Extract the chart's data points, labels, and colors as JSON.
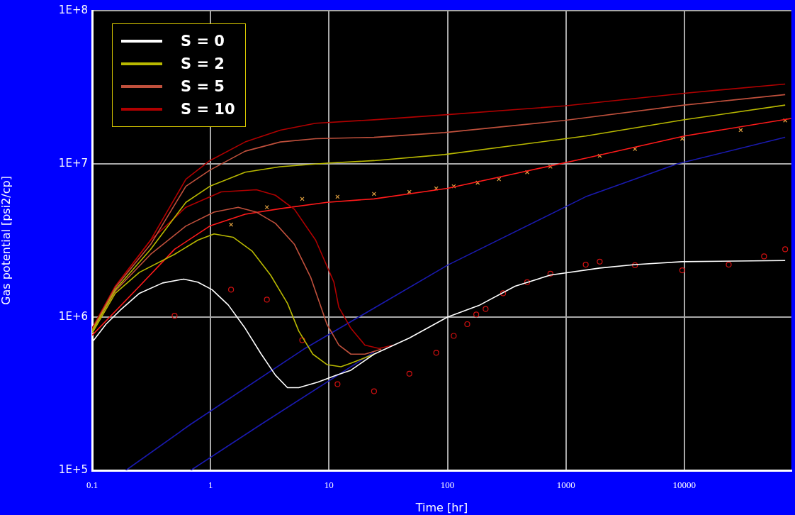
{
  "chart_data": {
    "type": "line",
    "xlabel": "Time [hr]",
    "ylabel": "Gas potential [psi2/cp]",
    "log": "xy",
    "grid": true,
    "legend": "top left",
    "xlim": [
      0.1,
      80000
    ],
    "xticks": [
      0.1,
      1,
      10,
      100,
      1000,
      10000
    ],
    "ylim": [
      100000,
      100000000
    ],
    "yticks": [
      {
        "value": 100000,
        "label": "1E+5"
      },
      {
        "value": 1000000,
        "label": "1E+6"
      },
      {
        "value": 10000000,
        "label": "1E+7"
      },
      {
        "value": 100000000,
        "label": "1E+8"
      }
    ],
    "series": [
      {
        "name": "S = 0",
        "color": "#ffffff",
        "x": [
          0.1,
          0.131,
          0.173,
          0.251,
          0.394,
          0.594,
          0.781,
          1.03,
          1.41,
          1.96,
          2.68,
          3.53,
          4.46,
          5.55,
          8.03,
          11.6,
          15.3,
          24,
          47.7,
          100,
          188,
          372,
          740,
          1930,
          3830,
          9600,
          71000
        ],
        "values": [
          685000,
          899000,
          1110000,
          1430000,
          1670000,
          1770000,
          1690000,
          1510000,
          1200000,
          845000,
          573000,
          418000,
          346000,
          346000,
          376000,
          418000,
          450000,
          573000,
          730000,
          1000000,
          1200000,
          1590000,
          1880000,
          2090000,
          2200000,
          2300000,
          2340000
        ]
      },
      {
        "name": "S = 2",
        "color": "#b8b800",
        "x": [
          0.1,
          0.157,
          0.312,
          0.619,
          0.986,
          1.96,
          3.88,
          9.6,
          24,
          94.6,
          1470,
          10000,
          71000
        ],
        "values": [
          811000,
          1510000,
          2770000,
          5610000,
          7140000,
          8820000,
          9590000,
          10100000,
          10500000,
          11500000,
          15200000,
          19400000,
          24200000
        ]
      },
      {
        "name": "S = 5",
        "color": "#c0503c",
        "x": [
          0.1,
          0.157,
          0.312,
          0.619,
          0.986,
          1.96,
          3.88,
          7.71,
          24,
          94.6,
          973,
          10000,
          71000
        ],
        "values": [
          828000,
          1560000,
          2980000,
          7140000,
          9100000,
          12100000,
          13900000,
          14600000,
          14900000,
          16000000,
          19200000,
          24200000,
          28300000
        ]
      },
      {
        "name": "S = 10",
        "color": "#b00000",
        "x": [
          0.1,
          0.157,
          0.312,
          0.619,
          0.986,
          1.96,
          3.88,
          7.71,
          24,
          94.6,
          973,
          10000,
          71000
        ],
        "values": [
          845000,
          1590000,
          3180000,
          7940000,
          10500000,
          13900000,
          16600000,
          18400000,
          19400000,
          20900000,
          23900000,
          28900000,
          33200000
        ]
      },
      {
        "type": "line",
        "color": "#b8b800",
        "x": [
          0.1,
          0.157,
          0.251,
          0.497,
          0.781,
          1.07,
          1.55,
          2.25,
          3.21,
          4.46,
          5.55,
          7.3,
          9.6,
          12.6,
          15.3,
          24
        ],
        "values": [
          785000,
          1430000,
          1960000,
          2570000,
          3180000,
          3490000,
          3320000,
          2690000,
          1880000,
          1230000,
          811000,
          573000,
          490000,
          474000,
          500000,
          573000
        ]
      },
      {
        "type": "line",
        "color": "#c0503c",
        "x": [
          0.1,
          0.157,
          0.312,
          0.619,
          1.07,
          1.71,
          2.44,
          3.53,
          5.11,
          7,
          9.6,
          12.1,
          15.3,
          20.1,
          27.6
        ],
        "values": [
          811000,
          1480000,
          2570000,
          3930000,
          4840000,
          5210000,
          4840000,
          4090000,
          2980000,
          1820000,
          899000,
          657000,
          573000,
          573000,
          617000
        ]
      },
      {
        "type": "line",
        "color": "#b00000",
        "x": [
          0.1,
          0.157,
          0.312,
          0.619,
          1.23,
          2.44,
          3.53,
          5.11,
          7.71,
          11,
          12.1,
          15.3,
          20.1,
          26.5,
          34.8
        ],
        "values": [
          845000,
          1590000,
          3180000,
          5210000,
          6560000,
          6780000,
          6240000,
          5050000,
          3180000,
          1690000,
          1160000,
          845000,
          657000,
          624000,
          657000
        ]
      },
      {
        "type": "line",
        "color": "#ff1a1a",
        "x": [
          0.1,
          0.251,
          0.497,
          0.986,
          1.96,
          3.88,
          9.6,
          24,
          100,
          372,
          1470,
          10000,
          80000
        ],
        "values": [
          760000,
          1590000,
          2770000,
          3930000,
          4690000,
          5100000,
          5610000,
          5910000,
          6920000,
          8630000,
          10900000,
          15200000,
          19800000
        ]
      },
      {
        "type": "line",
        "color": "#1a1ab0",
        "x": [
          0.193,
          0.681,
          6.11,
          100,
          1470,
          8710,
          71000
        ],
        "values": [
          100000,
          200000,
          617000,
          2180000,
          6100000,
          10000000,
          14900000
        ]
      },
      {
        "type": "line",
        "color": "#1a1ab0",
        "x": [
          0.681,
          2.68,
          24
        ],
        "values": [
          100000,
          200000,
          592000
        ]
      },
      {
        "type": "scatter",
        "marker": "cross",
        "color": "#e0a040",
        "x": [
          1.49,
          2.99,
          5.94,
          11.8,
          24,
          47.7,
          80.4,
          113,
          180,
          272,
          471,
          740,
          1930,
          3830,
          9600,
          29900,
          71000
        ],
        "values": [
          4010000,
          5210000,
          5910000,
          6100000,
          6370000,
          6560000,
          6920000,
          7140000,
          7540000,
          7940000,
          8820000,
          9590000,
          11300000,
          12500000,
          14600000,
          16600000,
          19200000
        ]
      },
      {
        "type": "scatter",
        "marker": "circle",
        "color": "#d01010",
        "x": [
          0.497,
          1.49,
          2.99,
          5.94,
          11.8,
          24,
          47.7,
          80.4,
          113,
          147,
          175,
          210,
          295,
          471,
          740,
          1470,
          1930,
          3830,
          9600,
          23700,
          47100,
          71000
        ],
        "values": [
          1020000,
          1510000,
          1300000,
          707000,
          365000,
          328000,
          427000,
          585000,
          754000,
          899000,
          1040000,
          1130000,
          1430000,
          1690000,
          1920000,
          2200000,
          2300000,
          2180000,
          2020000,
          2200000,
          2490000,
          2770000
        ]
      }
    ]
  }
}
